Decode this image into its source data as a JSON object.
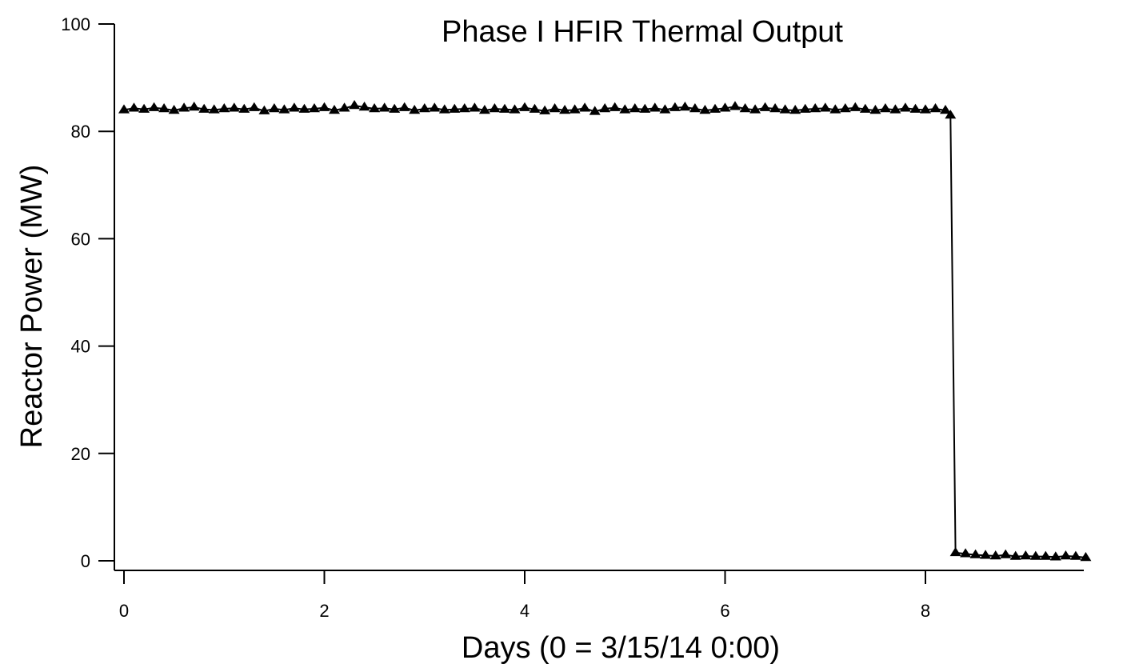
{
  "chart_data": {
    "type": "line",
    "title": "Phase I HFIR Thermal Output",
    "xlabel": "Days (0 = 3/15/14 0:00)",
    "ylabel": "Reactor Power (MW)",
    "xlim": [
      -0.1,
      9.6
    ],
    "ylim": [
      -2,
      100
    ],
    "xticks": [
      0,
      2,
      4,
      6,
      8
    ],
    "yticks": [
      0,
      20,
      40,
      60,
      80,
      100
    ],
    "grid": false,
    "legend": "none",
    "marker": "triangle",
    "color": "#000000",
    "series": [
      {
        "x": [
          0,
          0.1,
          0.2,
          0.3,
          0.4,
          0.5,
          0.6,
          0.7,
          0.8,
          0.9,
          1.0,
          1.1,
          1.2,
          1.3,
          1.4,
          1.5,
          1.6,
          1.7,
          1.8,
          1.9,
          2.0,
          2.1,
          2.2,
          2.3,
          2.4,
          2.5,
          2.6,
          2.7,
          2.8,
          2.9,
          3.0,
          3.1,
          3.2,
          3.3,
          3.4,
          3.5,
          3.6,
          3.7,
          3.8,
          3.9,
          4.0,
          4.1,
          4.2,
          4.3,
          4.4,
          4.5,
          4.6,
          4.7,
          4.8,
          4.9,
          5.0,
          5.1,
          5.2,
          5.3,
          5.4,
          5.5,
          5.6,
          5.7,
          5.8,
          5.9,
          6.0,
          6.1,
          6.2,
          6.3,
          6.4,
          6.5,
          6.6,
          6.7,
          6.8,
          6.9,
          7.0,
          7.1,
          7.2,
          7.3,
          7.4,
          7.5,
          7.6,
          7.7,
          7.8,
          7.9,
          8.0,
          8.1,
          8.2,
          8.25,
          8.3,
          8.4,
          8.5,
          8.6,
          8.7,
          8.8,
          8.9,
          9.0,
          9.1,
          9.2,
          9.3,
          9.4,
          9.5,
          9.6
        ],
        "y": [
          84.0,
          84.3,
          84.1,
          84.4,
          84.2,
          83.9,
          84.3,
          84.5,
          84.1,
          84.0,
          84.2,
          84.3,
          84.1,
          84.4,
          83.8,
          84.2,
          84.0,
          84.3,
          84.1,
          84.2,
          84.4,
          83.9,
          84.3,
          84.8,
          84.5,
          84.2,
          84.3,
          84.1,
          84.4,
          83.9,
          84.2,
          84.3,
          84.0,
          84.1,
          84.2,
          84.3,
          83.9,
          84.2,
          84.1,
          84.0,
          84.4,
          84.1,
          83.8,
          84.2,
          83.9,
          84.0,
          84.3,
          83.7,
          84.2,
          84.4,
          84.0,
          84.2,
          84.1,
          84.3,
          84.0,
          84.4,
          84.5,
          84.2,
          83.9,
          84.1,
          84.3,
          84.6,
          84.2,
          84.0,
          84.4,
          84.2,
          84.0,
          83.9,
          84.1,
          84.2,
          84.3,
          84.0,
          84.2,
          84.4,
          84.1,
          83.9,
          84.2,
          84.0,
          84.3,
          84.1,
          84.0,
          84.2,
          83.9,
          83.0,
          1.5,
          1.3,
          1.1,
          1.0,
          0.9,
          1.1,
          0.8,
          0.9,
          0.8,
          0.8,
          0.7,
          0.9,
          0.8,
          0.6
        ]
      }
    ]
  }
}
